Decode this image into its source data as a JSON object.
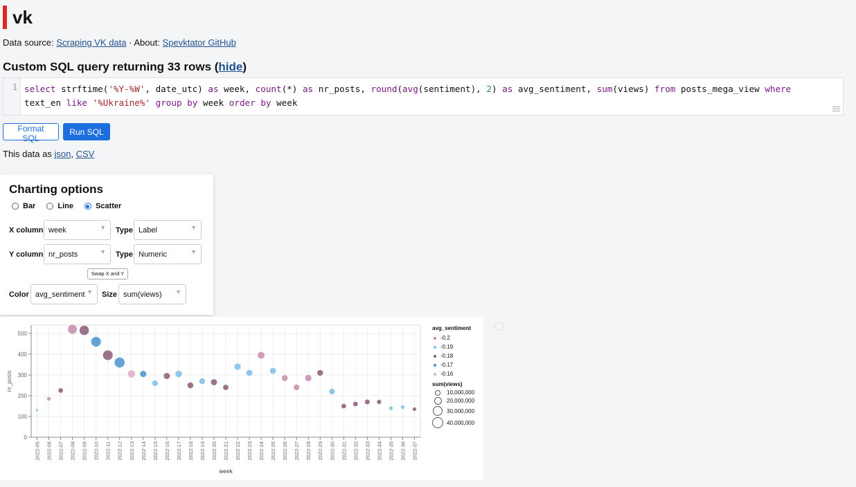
{
  "app": {
    "title": "vk",
    "accent": "#e02a1f"
  },
  "header": {
    "datasource_label": "Data source:",
    "datasource_link": "Scraping VK data",
    "about_label": "· About:",
    "about_link": "Spevktator GitHub"
  },
  "query": {
    "heading_prefix": "Custom SQL query returning 33 rows (",
    "hide_link": "hide",
    "heading_suffix": ")",
    "line_number": "1"
  },
  "buttons": {
    "format": "Format SQL",
    "run": "Run SQL"
  },
  "export": {
    "label": "This data as",
    "json": "json",
    "sep": ",",
    "csv": "CSV"
  },
  "options": {
    "title": "Charting options",
    "types": [
      "Bar",
      "Line",
      "Scatter"
    ],
    "selected_type": "Scatter",
    "x_column_label": "X column",
    "x_column": "week",
    "x_type_label": "Type",
    "x_type": "Label",
    "y_column_label": "Y column",
    "y_column": "nr_posts",
    "y_type_label": "Type",
    "y_type": "Numeric",
    "swap_label": "Swap X and Y",
    "color_label": "Color",
    "color": "avg_sentiment",
    "size_label": "Size",
    "size": "sum(views)"
  },
  "chart_data": {
    "type": "scatter",
    "xlabel": "week",
    "ylabel": "nr_posts",
    "ylim": [
      0,
      540
    ],
    "yticks": [
      0,
      100,
      200,
      300,
      400,
      500
    ],
    "x": [
      "2022-05",
      "2022-06",
      "2022-07",
      "2022-08",
      "2022-09",
      "2022-10",
      "2022-11",
      "2022-12",
      "2022-13",
      "2022-14",
      "2022-15",
      "2022-16",
      "2022-17",
      "2022-18",
      "2022-19",
      "2022-20",
      "2022-21",
      "2022-22",
      "2022-23",
      "2022-24",
      "2022-25",
      "2022-26",
      "2022-27",
      "2022-28",
      "2022-29",
      "2022-30",
      "2022-31",
      "2022-32",
      "2022-33",
      "2022-34",
      "2022-35",
      "2022-36",
      "2022-37"
    ],
    "y": [
      130,
      185,
      225,
      520,
      515,
      460,
      395,
      360,
      305,
      305,
      260,
      295,
      305,
      250,
      270,
      265,
      240,
      340,
      310,
      395,
      320,
      285,
      240,
      285,
      310,
      220,
      150,
      160,
      170,
      170,
      140,
      145,
      135
    ],
    "color": [
      -0.19,
      -0.2,
      -0.18,
      -0.2,
      -0.18,
      -0.17,
      -0.18,
      -0.17,
      -0.16,
      -0.17,
      -0.19,
      -0.18,
      -0.19,
      -0.18,
      -0.19,
      -0.18,
      -0.18,
      -0.19,
      -0.19,
      -0.2,
      -0.19,
      -0.2,
      -0.2,
      -0.2,
      -0.18,
      -0.19,
      -0.18,
      -0.18,
      -0.18,
      -0.18,
      -0.19,
      -0.19,
      -0.18
    ],
    "size": [
      2000000,
      5000000,
      8000000,
      30000000,
      33000000,
      35000000,
      35000000,
      38000000,
      20000000,
      15000000,
      12000000,
      14000000,
      16000000,
      13000000,
      13000000,
      14000000,
      11000000,
      15000000,
      14000000,
      17000000,
      14000000,
      13000000,
      12000000,
      15000000,
      13000000,
      12000000,
      8000000,
      8000000,
      9000000,
      7000000,
      5000000,
      5000000,
      5000000
    ],
    "legend": {
      "color_title": "avg_sentiment",
      "color_entries": [
        {
          "label": "-0.2",
          "color": "#c48bab"
        },
        {
          "label": "-0.19",
          "color": "#7cbde6"
        },
        {
          "label": "-0.18",
          "color": "#8a5a78"
        },
        {
          "label": "-0.17",
          "color": "#4a93cf"
        },
        {
          "label": "-0.16",
          "color": "#ddb0c6"
        }
      ],
      "size_title": "sum(views)",
      "size_entries": [
        "10,000,000",
        "20,000,000",
        "30,000,000",
        "40,000,000"
      ]
    },
    "grid": true,
    "legend_position": "right"
  }
}
